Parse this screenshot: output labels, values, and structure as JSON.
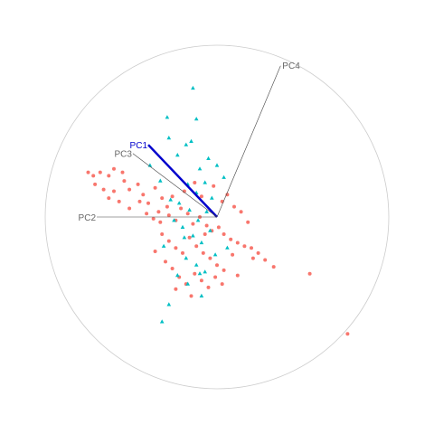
{
  "chart_data": {
    "type": "scatter",
    "title": "",
    "xlim": [
      -1.0,
      1.0
    ],
    "ylim": [
      -1.0,
      1.0
    ],
    "grid": false,
    "legend": "none",
    "colors": {
      "circle": "#cccccc",
      "axis_line": "#444444",
      "highlight_axis": "#0000cc",
      "series_circle": "#f8766d",
      "series_triangle": "#00bfc4"
    },
    "axes": [
      {
        "label": "PC4",
        "x": 0.37,
        "y": 0.88,
        "highlight": false
      },
      {
        "label": "PC1",
        "x": -0.4,
        "y": 0.42,
        "highlight": true
      },
      {
        "label": "PC3",
        "x": -0.49,
        "y": 0.37,
        "highlight": false
      },
      {
        "label": "PC2",
        "x": -0.7,
        "y": 0.0,
        "highlight": false
      }
    ],
    "series": [
      {
        "marker": "circle",
        "points": [
          [
            -0.75,
            0.26
          ],
          [
            -0.72,
            0.24
          ],
          [
            -0.68,
            0.26
          ],
          [
            -0.63,
            0.24
          ],
          [
            -0.6,
            0.28
          ],
          [
            -0.55,
            0.26
          ],
          [
            -0.71,
            0.19
          ],
          [
            -0.66,
            0.16
          ],
          [
            -0.6,
            0.15
          ],
          [
            -0.54,
            0.21
          ],
          [
            -0.51,
            0.16
          ],
          [
            -0.63,
            0.11
          ],
          [
            -0.57,
            0.09
          ],
          [
            -0.51,
            0.05
          ],
          [
            -0.46,
            0.19
          ],
          [
            -0.43,
            0.13
          ],
          [
            -0.4,
            0.08
          ],
          [
            -0.36,
            0.17
          ],
          [
            -0.32,
            0.11
          ],
          [
            -0.29,
            0.06
          ],
          [
            -0.41,
            0.02
          ],
          [
            -0.37,
            -0.01
          ],
          [
            -0.33,
            -0.03
          ],
          [
            -0.28,
            0.01
          ],
          [
            -0.24,
            -0.02
          ],
          [
            -0.21,
            0.05
          ],
          [
            -0.17,
            0.02
          ],
          [
            -0.14,
            -0.04
          ],
          [
            -0.1,
            0.0
          ],
          [
            -0.06,
            -0.05
          ],
          [
            -0.03,
            -0.08
          ],
          [
            0.01,
            -0.06
          ],
          [
            0.04,
            -0.1
          ],
          [
            0.08,
            -0.13
          ],
          [
            0.12,
            -0.15
          ],
          [
            0.16,
            -0.17
          ],
          [
            0.2,
            -0.18
          ],
          [
            0.24,
            -0.21
          ],
          [
            0.28,
            -0.25
          ],
          [
            0.33,
            -0.29
          ],
          [
            -0.32,
            -0.1
          ],
          [
            -0.28,
            -0.14
          ],
          [
            -0.24,
            -0.18
          ],
          [
            -0.2,
            -0.21
          ],
          [
            -0.16,
            -0.12
          ],
          [
            -0.12,
            -0.17
          ],
          [
            -0.08,
            -0.21
          ],
          [
            -0.04,
            -0.24
          ],
          [
            0.0,
            -0.28
          ],
          [
            0.04,
            -0.31
          ],
          [
            -0.3,
            -0.26
          ],
          [
            -0.26,
            -0.3
          ],
          [
            -0.22,
            -0.35
          ],
          [
            -0.18,
            -0.39
          ],
          [
            -0.13,
            -0.33
          ],
          [
            -0.09,
            -0.37
          ],
          [
            -0.05,
            -0.41
          ],
          [
            -0.01,
            -0.35
          ],
          [
            0.03,
            -0.39
          ],
          [
            0.09,
            -0.22
          ],
          [
            -0.36,
            -0.2
          ],
          [
            -0.19,
            0.15
          ],
          [
            -0.13,
            0.2
          ],
          [
            -0.09,
            0.12
          ],
          [
            -0.02,
            0.18
          ],
          [
            0.03,
            0.09
          ],
          [
            0.06,
            0.13
          ],
          [
            0.1,
            0.06
          ],
          [
            0.14,
            0.03
          ],
          [
            0.18,
            -0.03
          ],
          [
            0.54,
            -0.33
          ],
          [
            0.76,
            -0.68
          ],
          [
            -0.24,
            -0.42
          ],
          [
            -0.15,
            -0.46
          ],
          [
            -0.34,
            0.03
          ],
          [
            -0.45,
            0.09
          ],
          [
            -0.26,
            0.12
          ],
          [
            0.12,
            -0.34
          ],
          [
            -0.07,
            -0.1
          ],
          [
            0.21,
            -0.24
          ]
        ]
      },
      {
        "marker": "triangle",
        "points": [
          [
            -0.14,
            0.75
          ],
          [
            -0.12,
            0.57
          ],
          [
            -0.29,
            0.58
          ],
          [
            -0.28,
            0.46
          ],
          [
            -0.23,
            0.36
          ],
          [
            -0.18,
            0.42
          ],
          [
            -0.1,
            0.28
          ],
          [
            -0.05,
            0.34
          ],
          [
            0.0,
            0.3
          ],
          [
            0.04,
            0.23
          ],
          [
            -0.17,
            0.19
          ],
          [
            -0.12,
            0.14
          ],
          [
            -0.07,
            0.2
          ],
          [
            -0.03,
            0.11
          ],
          [
            -0.22,
            0.08
          ],
          [
            -0.16,
            0.04
          ],
          [
            -0.11,
            -0.02
          ],
          [
            -0.06,
            0.03
          ],
          [
            -0.2,
            -0.06
          ],
          [
            -0.14,
            -0.11
          ],
          [
            -0.09,
            -0.15
          ],
          [
            -0.04,
            -0.08
          ],
          [
            -0.18,
            -0.24
          ],
          [
            -0.12,
            -0.28
          ],
          [
            -0.07,
            -0.32
          ],
          [
            -0.23,
            -0.34
          ],
          [
            -0.17,
            -0.39
          ],
          [
            -0.09,
            -0.46
          ],
          [
            -0.28,
            -0.51
          ],
          [
            -0.32,
            -0.61
          ],
          [
            -0.39,
            0.3
          ],
          [
            -0.33,
            0.21
          ],
          [
            -0.27,
            0.1
          ],
          [
            -0.31,
            -0.17
          ],
          [
            -0.25,
            -0.02
          ],
          [
            -0.01,
            -0.22
          ],
          [
            0.06,
            -0.18
          ],
          [
            -0.19,
            -0.12
          ],
          [
            -0.1,
            -0.33
          ],
          [
            -0.15,
            0.44
          ]
        ]
      }
    ]
  }
}
